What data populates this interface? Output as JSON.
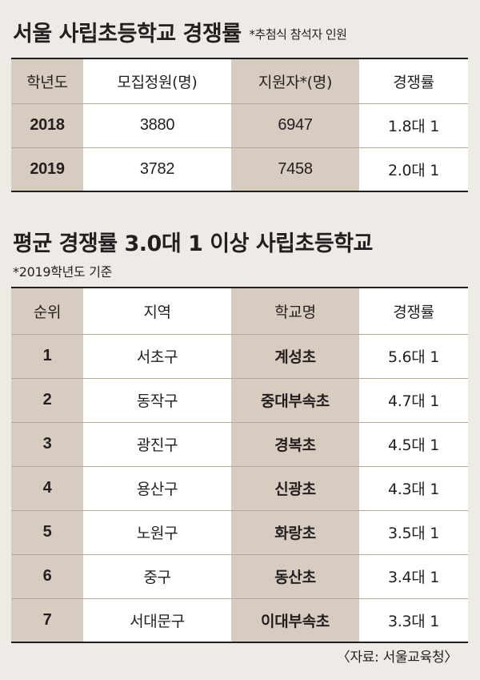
{
  "title1": "서울 사립초등학교 경쟁률",
  "title1_note": "*추첨식 참석자 인원",
  "table1": {
    "headers": [
      "학년도",
      "모집정원(명)",
      "지원자*(명)",
      "경쟁률"
    ],
    "rows": [
      {
        "year": "2018",
        "capacity": "3880",
        "applicants": "6947",
        "rate": "1.8대 1"
      },
      {
        "year": "2019",
        "capacity": "3782",
        "applicants": "7458",
        "rate": "2.0대 1"
      }
    ]
  },
  "title2": "평균 경쟁률 3.0대 1 이상 사립초등학교",
  "title2_note": "*2019학년도 기준",
  "table2": {
    "headers": [
      "순위",
      "지역",
      "학교명",
      "경쟁률"
    ],
    "rows": [
      {
        "rank": "1",
        "region": "서초구",
        "school": "계성초",
        "rate": "5.6대 1"
      },
      {
        "rank": "2",
        "region": "동작구",
        "school": "중대부속초",
        "rate": "4.7대 1"
      },
      {
        "rank": "3",
        "region": "광진구",
        "school": "경복초",
        "rate": "4.5대 1"
      },
      {
        "rank": "4",
        "region": "용산구",
        "school": "신광초",
        "rate": "4.3대 1"
      },
      {
        "rank": "5",
        "region": "노원구",
        "school": "화랑초",
        "rate": "3.5대 1"
      },
      {
        "rank": "6",
        "region": "중구",
        "school": "동산초",
        "rate": "3.4대 1"
      },
      {
        "rank": "7",
        "region": "서대문구",
        "school": "이대부속초",
        "rate": "3.3대 1"
      }
    ]
  },
  "source": "〈자료: 서울교육청〉",
  "colors": {
    "shade": "#d8ccc0",
    "background": "#eeeae6",
    "rule": "#231f20"
  },
  "chart_data": [
    {
      "type": "table",
      "title": "서울 사립초등학교 경쟁률",
      "note": "*추첨식 참석자 인원",
      "columns": [
        "학년도",
        "모집정원(명)",
        "지원자*(명)",
        "경쟁률"
      ],
      "rows": [
        [
          "2018",
          3880,
          6947,
          "1.8대 1"
        ],
        [
          "2019",
          3782,
          7458,
          "2.0대 1"
        ]
      ]
    },
    {
      "type": "table",
      "title": "평균 경쟁률 3.0대 1 이상 사립초등학교",
      "note": "*2019학년도 기준",
      "columns": [
        "순위",
        "지역",
        "학교명",
        "경쟁률"
      ],
      "rows": [
        [
          1,
          "서초구",
          "계성초",
          "5.6대 1"
        ],
        [
          2,
          "동작구",
          "중대부속초",
          "4.7대 1"
        ],
        [
          3,
          "광진구",
          "경복초",
          "4.5대 1"
        ],
        [
          4,
          "용산구",
          "신광초",
          "4.3대 1"
        ],
        [
          5,
          "노원구",
          "화랑초",
          "3.5대 1"
        ],
        [
          6,
          "중구",
          "동산초",
          "3.4대 1"
        ],
        [
          7,
          "서대문구",
          "이대부속초",
          "3.3대 1"
        ]
      ]
    }
  ]
}
